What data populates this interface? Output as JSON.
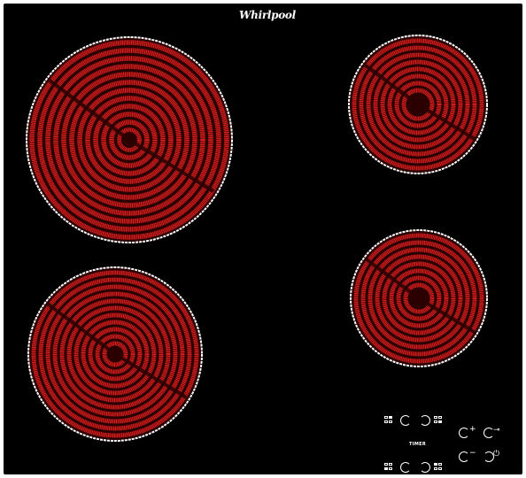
{
  "brand": {
    "name": "Whirlpool"
  },
  "controls": {
    "timer_label": "TIMER",
    "plus_symbol": "+",
    "minus_symbol": "−",
    "key_symbol": "⊸",
    "power_symbol": "⏻"
  },
  "colors": {
    "glass": "#000000",
    "zone_red": "#d81e1e",
    "zone_dark": "#2a0000",
    "rim": "#ffffff"
  },
  "icons": [
    "zone-grid-icon",
    "slider-ring-icon",
    "plus-icon",
    "minus-icon",
    "lock-icon",
    "power-icon"
  ]
}
